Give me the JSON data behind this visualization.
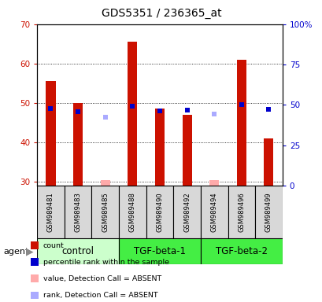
{
  "title": "GDS5351 / 236365_at",
  "samples": [
    "GSM989481",
    "GSM989483",
    "GSM989485",
    "GSM989488",
    "GSM989490",
    "GSM989492",
    "GSM989494",
    "GSM989496",
    "GSM989499"
  ],
  "groups": [
    {
      "name": "control",
      "indices": [
        0,
        1,
        2
      ],
      "color": "#ccffcc"
    },
    {
      "name": "TGF-beta-1",
      "indices": [
        3,
        4,
        5
      ],
      "color": "#44ee44"
    },
    {
      "name": "TGF-beta-2",
      "indices": [
        6,
        7,
        8
      ],
      "color": "#44ee44"
    }
  ],
  "count_values": [
    55.5,
    50.0,
    null,
    65.5,
    48.5,
    47.0,
    null,
    61.0,
    41.0
  ],
  "rank_values": [
    48.0,
    46.0,
    null,
    49.0,
    46.5,
    47.0,
    null,
    50.0,
    47.5
  ],
  "absent_value": [
    null,
    null,
    30.5,
    null,
    null,
    null,
    30.5,
    null,
    null
  ],
  "absent_rank": [
    null,
    null,
    42.5,
    null,
    null,
    null,
    44.5,
    null,
    null
  ],
  "ylim_left": [
    29,
    70
  ],
  "ylim_right": [
    0,
    100
  ],
  "yticks_left": [
    30,
    40,
    50,
    60,
    70
  ],
  "yticks_right": [
    0,
    25,
    50,
    75,
    100
  ],
  "yticklabels_right": [
    "0",
    "25",
    "50",
    "75",
    "100%"
  ],
  "bar_color": "#cc1100",
  "rank_color": "#0000cc",
  "absent_bar_color": "#ffaaaa",
  "absent_rank_color": "#aaaaff",
  "legend_items": [
    {
      "label": "count",
      "color": "#cc1100"
    },
    {
      "label": "percentile rank within the sample",
      "color": "#0000cc"
    },
    {
      "label": "value, Detection Call = ABSENT",
      "color": "#ffaaaa"
    },
    {
      "label": "rank, Detection Call = ABSENT",
      "color": "#aaaaff"
    }
  ],
  "bg_color": "#d8d8d8",
  "plot_bg": "#ffffff",
  "axis_color_left": "#cc1100",
  "axis_color_right": "#0000cc"
}
